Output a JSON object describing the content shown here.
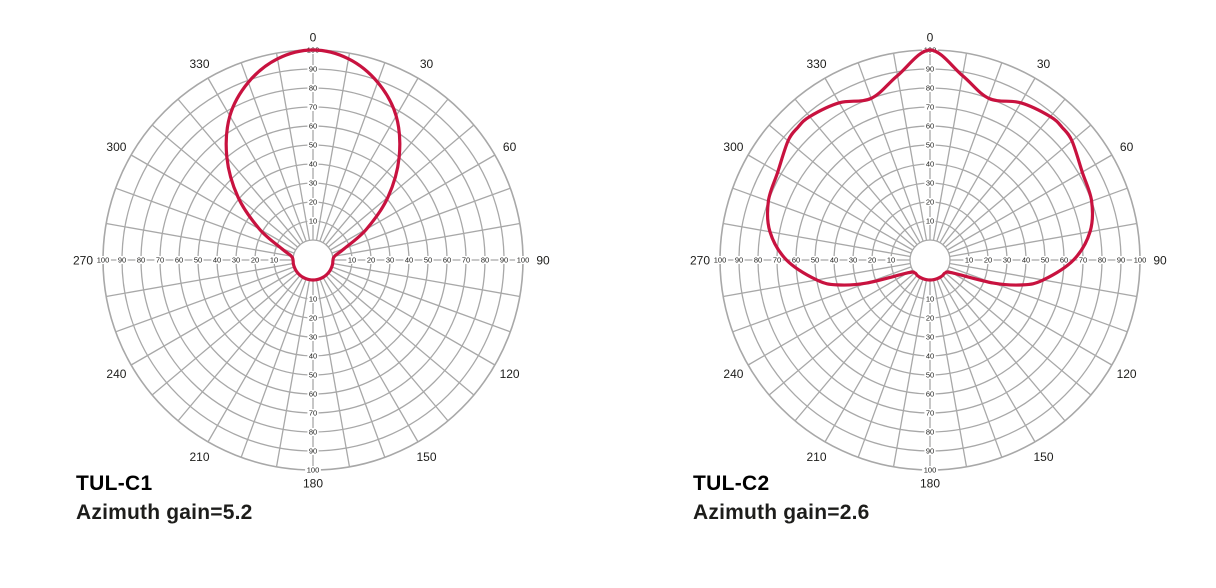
{
  "colors": {
    "grid": "#a8a8a8",
    "series": "#c8123f",
    "title": "#1a63a6",
    "text": "#1d1d1b"
  },
  "chart_data": [
    {
      "type": "polar",
      "title": "TUL-C1",
      "subtitle": "Azimuth gain=5.2",
      "angle_ticks": [
        "0",
        "30",
        "60",
        "90",
        "120",
        "150",
        "180",
        "210",
        "240",
        "270",
        "300",
        "330"
      ],
      "radial_ticks": [
        "10",
        "20",
        "30",
        "40",
        "50",
        "60",
        "70",
        "80",
        "90",
        "100"
      ],
      "rlim": [
        0,
        100
      ],
      "grid": true,
      "series": [
        {
          "angles": [
            0,
            10,
            20,
            30,
            40,
            50,
            60,
            70,
            80,
            90,
            100,
            110,
            120,
            130,
            140,
            150,
            160,
            170,
            180,
            190,
            200,
            210,
            220,
            230,
            240,
            250,
            260,
            270,
            280,
            290,
            300,
            310,
            320,
            330,
            340,
            350
          ],
          "values": [
            100,
            97,
            89,
            77,
            60,
            41,
            22,
            7,
            1,
            0,
            0,
            0,
            0,
            0,
            0,
            0,
            0,
            0,
            0,
            0,
            0,
            0,
            0,
            0,
            0,
            0,
            0,
            0,
            1,
            7,
            22,
            41,
            60,
            77,
            89,
            97
          ]
        }
      ]
    },
    {
      "type": "polar",
      "title": "TUL-C2",
      "subtitle": "Azimuth gain=2.6",
      "angle_ticks": [
        "0",
        "30",
        "60",
        "90",
        "120",
        "150",
        "180",
        "210",
        "240",
        "270",
        "300",
        "330"
      ],
      "radial_ticks": [
        "10",
        "20",
        "30",
        "40",
        "50",
        "60",
        "70",
        "80",
        "90",
        "100"
      ],
      "rlim": [
        0,
        100
      ],
      "grid": true,
      "series": [
        {
          "angles": [
            0,
            10,
            20,
            30,
            40,
            45,
            50,
            60,
            70,
            80,
            90,
            100,
            105,
            110,
            120,
            130,
            140,
            150,
            160,
            170,
            180,
            190,
            200,
            210,
            220,
            230,
            240,
            250,
            255,
            260,
            270,
            280,
            290,
            300,
            310,
            315,
            320,
            330,
            340,
            350
          ],
          "values": [
            100,
            88,
            80,
            85,
            88,
            88,
            87,
            82,
            80,
            75,
            65,
            50,
            40,
            25,
            3,
            0,
            0,
            0,
            0,
            0,
            0,
            0,
            0,
            0,
            0,
            0,
            3,
            25,
            40,
            50,
            65,
            75,
            80,
            82,
            87,
            88,
            88,
            85,
            80,
            88
          ]
        }
      ]
    }
  ]
}
